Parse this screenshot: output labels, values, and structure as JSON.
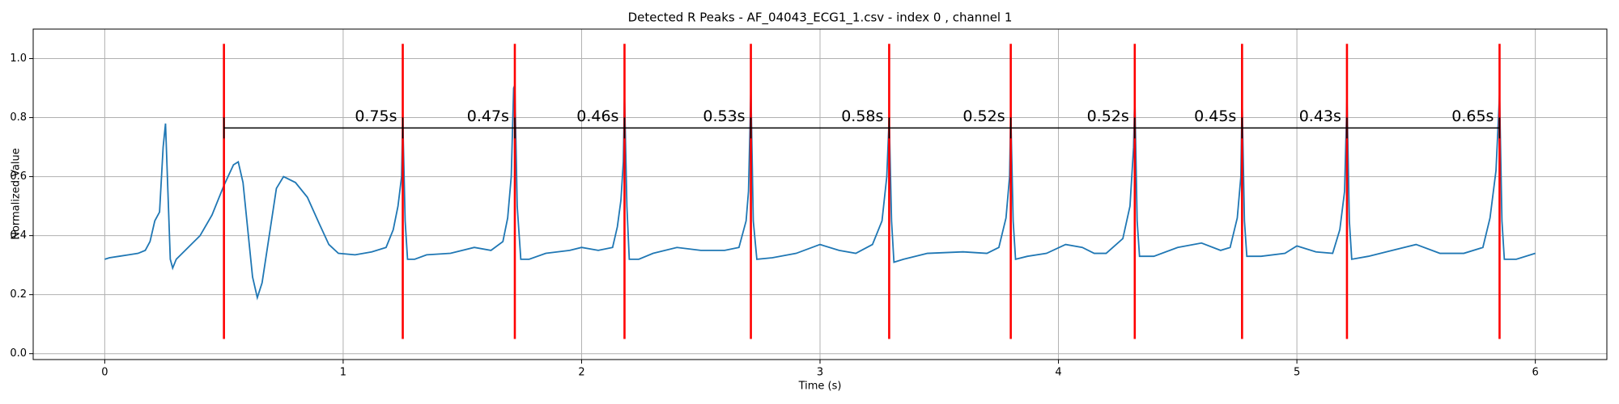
{
  "chart_data": {
    "type": "line",
    "title": "Detected R Peaks - AF_04043_ECG1_1.csv - index 0 , channel 1",
    "x_label": "Time (s)",
    "y_label": "Normalized Value",
    "xlim": [
      -0.3,
      6.3
    ],
    "ylim": [
      -0.02,
      1.1
    ],
    "xticks": [
      0,
      1,
      2,
      3,
      4,
      5,
      6
    ],
    "yticks": [
      {
        "value": 0,
        "label": "0.0"
      },
      0.2,
      0.4,
      0.6,
      0.8,
      {
        "value": 1,
        "label": "1.0"
      }
    ],
    "grid": true,
    "series": [
      {
        "color": "#1f77b4",
        "x": [
          0.0,
          0.02,
          0.06,
          0.1,
          0.14,
          0.17,
          0.19,
          0.21,
          0.23,
          0.245,
          0.255,
          0.265,
          0.275,
          0.285,
          0.3,
          0.35,
          0.4,
          0.45,
          0.5,
          0.54,
          0.56,
          0.58,
          0.6,
          0.62,
          0.64,
          0.66,
          0.69,
          0.72,
          0.75,
          0.8,
          0.85,
          0.9,
          0.94,
          0.98,
          1.05,
          1.12,
          1.18,
          1.21,
          1.23,
          1.245,
          1.25,
          1.26,
          1.27,
          1.3,
          1.35,
          1.45,
          1.55,
          1.62,
          1.67,
          1.69,
          1.705,
          1.715,
          1.72,
          1.73,
          1.745,
          1.78,
          1.85,
          1.95,
          2.0,
          2.07,
          2.13,
          2.15,
          2.165,
          2.175,
          2.18,
          2.19,
          2.2,
          2.24,
          2.3,
          2.4,
          2.5,
          2.6,
          2.66,
          2.69,
          2.7,
          2.71,
          2.72,
          2.735,
          2.8,
          2.9,
          3.0,
          3.08,
          3.15,
          3.22,
          3.26,
          3.28,
          3.29,
          3.3,
          3.31,
          3.35,
          3.45,
          3.6,
          3.7,
          3.75,
          3.78,
          3.795,
          3.8,
          3.81,
          3.82,
          3.87,
          3.95,
          4.03,
          4.1,
          4.15,
          4.2,
          4.27,
          4.3,
          4.315,
          4.32,
          4.33,
          4.34,
          4.4,
          4.5,
          4.6,
          4.68,
          4.72,
          4.75,
          4.765,
          4.77,
          4.78,
          4.79,
          4.85,
          4.95,
          5.0,
          5.08,
          5.15,
          5.18,
          5.2,
          5.21,
          5.22,
          5.23,
          5.3,
          5.4,
          5.5,
          5.6,
          5.7,
          5.78,
          5.81,
          5.835,
          5.85,
          5.86,
          5.87,
          5.92,
          6.0
        ],
        "values": [
          0.32,
          0.325,
          0.33,
          0.335,
          0.34,
          0.35,
          0.38,
          0.45,
          0.48,
          0.7,
          0.78,
          0.55,
          0.32,
          0.29,
          0.32,
          0.36,
          0.4,
          0.47,
          0.57,
          0.64,
          0.65,
          0.58,
          0.42,
          0.26,
          0.19,
          0.24,
          0.4,
          0.56,
          0.6,
          0.58,
          0.53,
          0.44,
          0.37,
          0.34,
          0.335,
          0.345,
          0.36,
          0.42,
          0.5,
          0.6,
          0.8,
          0.45,
          0.32,
          0.32,
          0.335,
          0.34,
          0.36,
          0.35,
          0.38,
          0.46,
          0.6,
          0.9,
          0.91,
          0.5,
          0.32,
          0.32,
          0.34,
          0.35,
          0.36,
          0.35,
          0.36,
          0.43,
          0.52,
          0.65,
          0.88,
          0.5,
          0.32,
          0.32,
          0.34,
          0.36,
          0.35,
          0.35,
          0.36,
          0.45,
          0.55,
          0.9,
          0.45,
          0.32,
          0.325,
          0.34,
          0.37,
          0.35,
          0.34,
          0.37,
          0.45,
          0.6,
          0.8,
          0.45,
          0.31,
          0.32,
          0.34,
          0.345,
          0.34,
          0.36,
          0.46,
          0.6,
          0.82,
          0.45,
          0.32,
          0.33,
          0.34,
          0.37,
          0.36,
          0.34,
          0.34,
          0.39,
          0.5,
          0.7,
          0.88,
          0.45,
          0.33,
          0.33,
          0.36,
          0.375,
          0.35,
          0.36,
          0.46,
          0.6,
          0.87,
          0.45,
          0.33,
          0.33,
          0.34,
          0.365,
          0.345,
          0.34,
          0.42,
          0.55,
          0.87,
          0.45,
          0.32,
          0.33,
          0.35,
          0.37,
          0.34,
          0.34,
          0.36,
          0.46,
          0.62,
          0.88,
          0.45,
          0.32,
          0.32,
          0.34
        ]
      }
    ],
    "peaks": {
      "x": [
        0.5,
        1.25,
        1.72,
        2.18,
        2.71,
        3.29,
        3.8,
        4.32,
        4.77,
        5.21,
        5.85
      ],
      "color": "#ff0000",
      "ymin": 0.05,
      "ymax": 1.05
    },
    "intervals": {
      "values": [
        0.75,
        0.47,
        0.46,
        0.53,
        0.58,
        0.52,
        0.52,
        0.45,
        0.43,
        0.65
      ],
      "value_labels": [
        "0.75s",
        "0.47s",
        "0.46s",
        "0.53s",
        "0.58s",
        "0.52s",
        "0.52s",
        "0.45s",
        "0.43s",
        "0.65s"
      ],
      "y": 0.765,
      "color": "#000000"
    }
  }
}
